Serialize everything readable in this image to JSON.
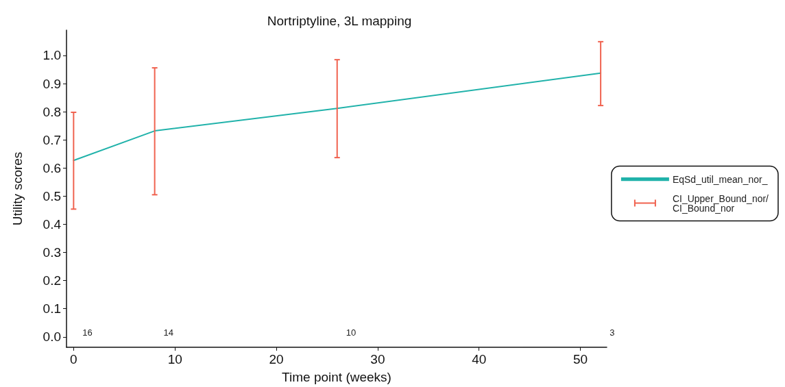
{
  "chart_data": {
    "type": "line",
    "title": "Nortriptyline, 3L mapping",
    "xlabel": "Time point (weeks)",
    "ylabel": "Utility scores",
    "x": [
      0,
      8,
      26,
      52
    ],
    "series": [
      {
        "name": "EqSd_util_mean_nor_",
        "color": "#20b2aa",
        "values": [
          0.627,
          0.732,
          0.812,
          0.937
        ],
        "errors": [
          [
            0.454,
            0.798
          ],
          [
            0.505,
            0.956
          ],
          [
            0.637,
            0.985
          ],
          [
            0.822,
            1.049
          ]
        ]
      },
      {
        "name": "CI_Upper_Bound_nor/CI_Bound_nor",
        "color": "#f0624f",
        "values": [
          null,
          null,
          null,
          null
        ]
      }
    ],
    "annotations": [
      "16",
      "14",
      "10",
      "3"
    ],
    "xlim": [
      -0.7,
      52.6
    ],
    "xticks": [
      0,
      10,
      20,
      30,
      40,
      50
    ],
    "ylim": [
      -0.037,
      1.09
    ],
    "yticks": [
      {
        "value": 0,
        "label": "0.0"
      },
      {
        "value": 0.1,
        "label": "0.1"
      },
      {
        "value": 0.2,
        "label": "0.2"
      },
      {
        "value": 0.3,
        "label": "0.3"
      },
      {
        "value": 0.4,
        "label": "0.4"
      },
      {
        "value": 0.5,
        "label": "0.5"
      },
      {
        "value": 0.6,
        "label": "0.6"
      },
      {
        "value": 0.7,
        "label": "0.7"
      },
      {
        "value": 0.8,
        "label": "0.8"
      },
      {
        "value": 0.9,
        "label": "0.9"
      },
      {
        "value": 1,
        "label": "1.0"
      }
    ],
    "grid": false,
    "legend": "right"
  }
}
